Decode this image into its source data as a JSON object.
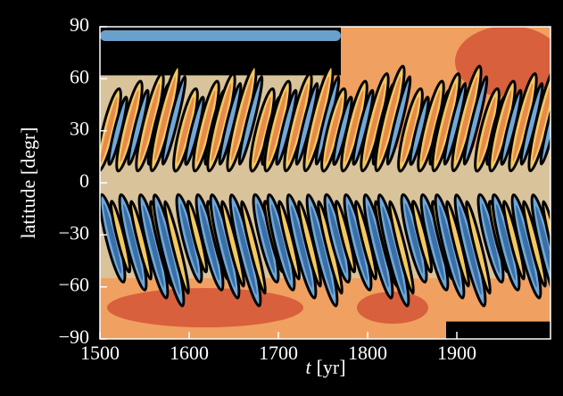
{
  "chart_data": {
    "type": "contour",
    "ylabel": "latitude [degr]",
    "xlabel": {
      "symbol": "t",
      "unit": "[yr]"
    },
    "xlim": [
      1500,
      2005
    ],
    "xticks": [
      1500,
      1600,
      1700,
      1800,
      1900
    ],
    "ylim": [
      -90,
      90
    ],
    "yticks": [
      90,
      60,
      30,
      0,
      {
        "value": -30,
        "label": "−30"
      },
      {
        "value": -60,
        "label": "−60"
      },
      {
        "value": -90,
        "label": "−90"
      }
    ]
  }
}
